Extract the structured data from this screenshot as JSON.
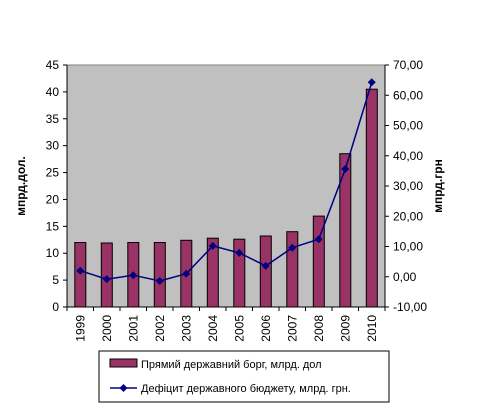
{
  "chart_data": {
    "type": "bar",
    "categories": [
      "1999",
      "2000",
      "2001",
      "2002",
      "2003",
      "2004",
      "2005",
      "2006",
      "2007",
      "2008",
      "2009",
      "2010"
    ],
    "series": [
      {
        "name": "Прямий державний борг, млрд. дол",
        "chart": "bar",
        "axis": "left",
        "values": [
          12.0,
          11.9,
          12.0,
          12.0,
          12.4,
          12.8,
          12.6,
          13.2,
          14.0,
          16.9,
          28.5,
          40.5
        ]
      },
      {
        "name": "Дефіцит державного бюджету, млрд. грн.",
        "chart": "line",
        "axis": "right",
        "values": [
          2.0,
          -0.8,
          0.5,
          -1.4,
          1.0,
          10.2,
          7.9,
          3.6,
          9.6,
          12.4,
          35.6,
          64.3
        ]
      }
    ],
    "ylabel": "мпрд.дол.",
    "ylabel_right": "мпрд.грн",
    "ylim": [
      0,
      45
    ],
    "ylim_right": [
      -10,
      70
    ],
    "yticks": [
      "0",
      "5",
      "10",
      "15",
      "20",
      "25",
      "30",
      "35",
      "40",
      "45"
    ],
    "yticks_right": [
      "-10,00",
      "0,00",
      "10,00",
      "20,00",
      "30,00",
      "40,00",
      "50,00",
      "60,00",
      "70,00"
    ],
    "grid": false,
    "legend_position": "bottom",
    "colors": {
      "plot_background": "#c0c0c0",
      "bar_fill": "#993366",
      "line": "#000080",
      "marker": "#000080"
    }
  }
}
